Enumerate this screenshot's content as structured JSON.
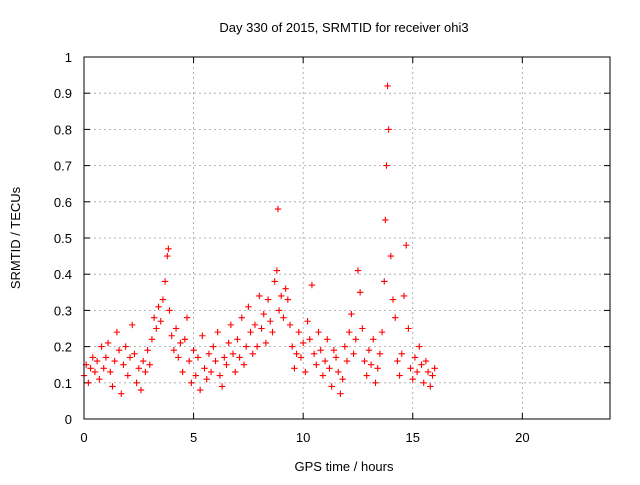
{
  "chart_data": {
    "type": "scatter",
    "title": "Day 330 of 2015, SRMTID for receiver ohi3",
    "xlabel": "GPS time / hours",
    "ylabel": "SRMTID / TECUs",
    "xlim": [
      0,
      24
    ],
    "ylim": [
      0,
      1
    ],
    "xticks": [
      0,
      5,
      10,
      15,
      20
    ],
    "xtick_labels": [
      "0",
      "5",
      "10",
      "15",
      "20"
    ],
    "yticks": [
      0,
      0.1,
      0.2,
      0.3,
      0.4,
      0.5,
      0.6,
      0.7,
      0.8,
      0.9,
      1
    ],
    "ytick_labels": [
      "0",
      "0.1",
      "0.2",
      "0.3",
      "0.4",
      "0.5",
      "0.6",
      "0.7",
      "0.8",
      "0.9",
      "1"
    ],
    "grid": true,
    "marker": "plus",
    "color": "#ff0000",
    "series": [
      {
        "name": "SRMTID",
        "x": [
          0.0,
          0.1,
          0.2,
          0.3,
          0.4,
          0.5,
          0.6,
          0.7,
          0.8,
          0.9,
          1.0,
          1.1,
          1.2,
          1.3,
          1.4,
          1.5,
          1.6,
          1.7,
          1.8,
          1.9,
          2.0,
          2.1,
          2.2,
          2.3,
          2.4,
          2.5,
          2.6,
          2.7,
          2.8,
          2.9,
          3.0,
          3.1,
          3.2,
          3.3,
          3.4,
          3.5,
          3.6,
          3.7,
          3.8,
          3.85,
          3.9,
          4.0,
          4.1,
          4.2,
          4.3,
          4.4,
          4.5,
          4.6,
          4.7,
          4.8,
          4.9,
          5.0,
          5.1,
          5.2,
          5.3,
          5.4,
          5.5,
          5.6,
          5.7,
          5.8,
          5.9,
          6.0,
          6.1,
          6.2,
          6.3,
          6.4,
          6.5,
          6.6,
          6.7,
          6.8,
          6.9,
          7.0,
          7.1,
          7.2,
          7.3,
          7.4,
          7.5,
          7.6,
          7.7,
          7.8,
          7.9,
          8.0,
          8.1,
          8.2,
          8.3,
          8.4,
          8.5,
          8.6,
          8.7,
          8.8,
          8.85,
          8.9,
          9.0,
          9.1,
          9.2,
          9.3,
          9.4,
          9.5,
          9.6,
          9.7,
          9.8,
          9.9,
          10.0,
          10.1,
          10.2,
          10.3,
          10.4,
          10.5,
          10.6,
          10.7,
          10.8,
          10.9,
          11.0,
          11.1,
          11.2,
          11.3,
          11.4,
          11.5,
          11.6,
          11.7,
          11.8,
          11.9,
          12.0,
          12.1,
          12.2,
          12.3,
          12.4,
          12.5,
          12.6,
          12.7,
          12.8,
          12.9,
          13.0,
          13.1,
          13.2,
          13.3,
          13.4,
          13.5,
          13.6,
          13.7,
          13.75,
          13.8,
          13.85,
          13.9,
          14.0,
          14.1,
          14.2,
          14.3,
          14.4,
          14.5,
          14.6,
          14.7,
          14.8,
          14.9,
          15.0,
          15.1,
          15.2,
          15.3,
          15.4,
          15.5,
          15.6,
          15.7,
          15.8,
          15.9,
          16.0
        ],
        "y": [
          0.12,
          0.15,
          0.1,
          0.14,
          0.17,
          0.13,
          0.16,
          0.11,
          0.2,
          0.14,
          0.17,
          0.21,
          0.13,
          0.09,
          0.16,
          0.24,
          0.19,
          0.07,
          0.15,
          0.2,
          0.12,
          0.17,
          0.26,
          0.18,
          0.1,
          0.14,
          0.08,
          0.16,
          0.13,
          0.19,
          0.15,
          0.22,
          0.28,
          0.25,
          0.31,
          0.27,
          0.33,
          0.38,
          0.45,
          0.47,
          0.3,
          0.23,
          0.19,
          0.25,
          0.17,
          0.21,
          0.13,
          0.22,
          0.28,
          0.16,
          0.1,
          0.19,
          0.12,
          0.17,
          0.08,
          0.23,
          0.14,
          0.11,
          0.18,
          0.13,
          0.2,
          0.16,
          0.24,
          0.12,
          0.09,
          0.17,
          0.15,
          0.21,
          0.26,
          0.18,
          0.13,
          0.22,
          0.17,
          0.28,
          0.15,
          0.2,
          0.31,
          0.24,
          0.18,
          0.26,
          0.2,
          0.34,
          0.25,
          0.29,
          0.21,
          0.33,
          0.27,
          0.24,
          0.38,
          0.41,
          0.58,
          0.3,
          0.34,
          0.28,
          0.36,
          0.33,
          0.26,
          0.2,
          0.14,
          0.18,
          0.24,
          0.17,
          0.21,
          0.13,
          0.27,
          0.22,
          0.37,
          0.18,
          0.15,
          0.24,
          0.19,
          0.12,
          0.16,
          0.22,
          0.14,
          0.09,
          0.19,
          0.17,
          0.13,
          0.07,
          0.11,
          0.2,
          0.16,
          0.24,
          0.29,
          0.18,
          0.22,
          0.41,
          0.35,
          0.25,
          0.16,
          0.12,
          0.19,
          0.15,
          0.22,
          0.1,
          0.14,
          0.18,
          0.24,
          0.38,
          0.55,
          0.7,
          0.92,
          0.8,
          0.45,
          0.33,
          0.28,
          0.16,
          0.12,
          0.18,
          0.34,
          0.48,
          0.25,
          0.14,
          0.11,
          0.17,
          0.13,
          0.2,
          0.15,
          0.1,
          0.16,
          0.13,
          0.09,
          0.12,
          0.14
        ]
      }
    ]
  }
}
